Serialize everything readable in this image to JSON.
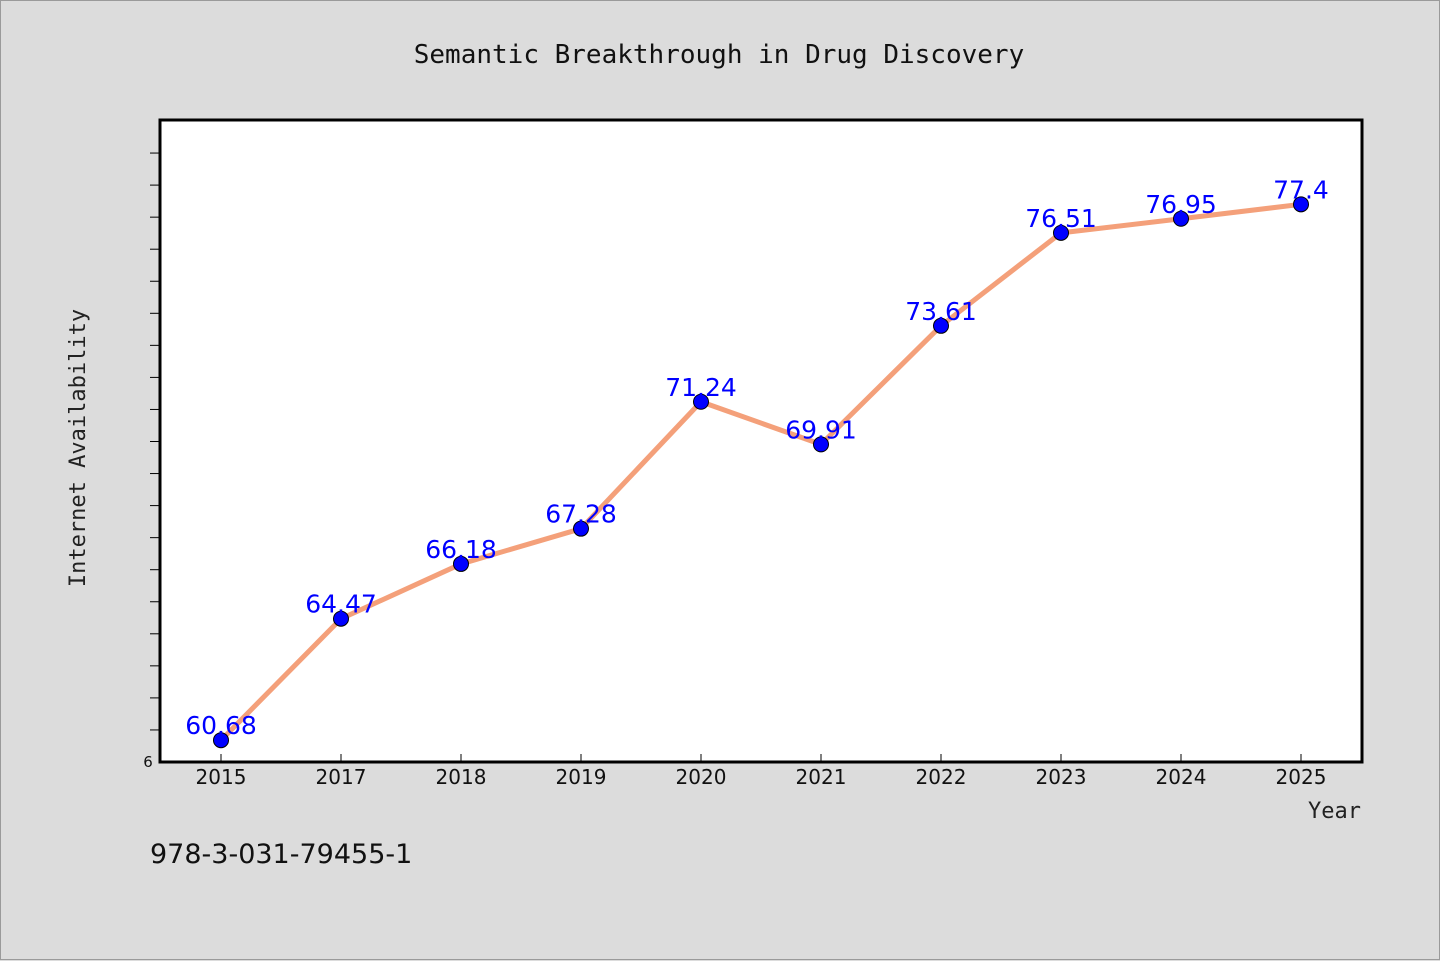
{
  "chart_data": {
    "type": "line",
    "title": "Semantic Breakthrough in Drug Discovery",
    "xlabel": "Year",
    "ylabel": "Internet Availability",
    "categories": [
      "2015",
      "2017",
      "2018",
      "2019",
      "2020",
      "2021",
      "2022",
      "2023",
      "2024",
      "2025"
    ],
    "series": [
      {
        "values": [
          60.68,
          64.47,
          66.18,
          67.28,
          71.24,
          69.91,
          73.61,
          76.51,
          76.95,
          77.4
        ],
        "data_labels": [
          "60.68",
          "64.47",
          "66.18",
          "67.28",
          "71.24",
          "69.91",
          "73.61",
          "76.51",
          "76.95",
          "77.4"
        ],
        "line_color": "#f4a07a",
        "marker_color": "#0000ff",
        "label_color": "#0000ff"
      }
    ],
    "ylim": [
      60,
      80
    ],
    "y_tick_label": "6",
    "grid": false,
    "legend": "none"
  },
  "footnote": "978-3-031-79455-1",
  "colors": {
    "background": "#dcdcdc",
    "plot_background": "#ffffff",
    "axis": "#000000"
  }
}
